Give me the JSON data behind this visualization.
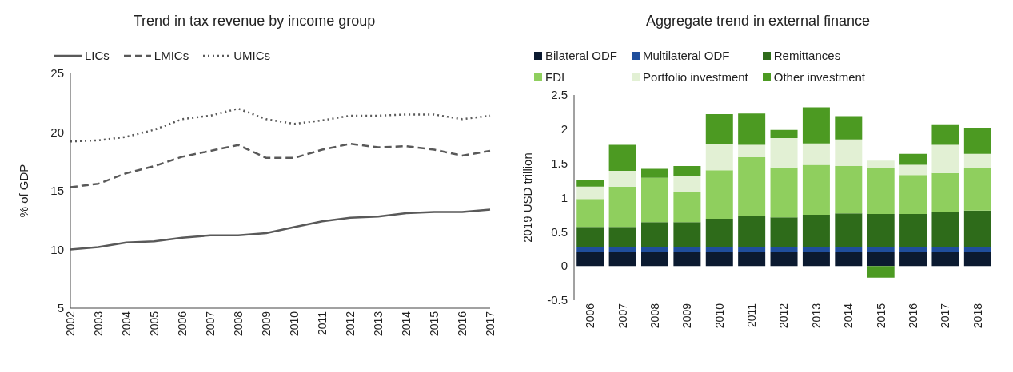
{
  "chart_data": [
    {
      "type": "line",
      "title": "Trend in tax revenue by income group",
      "ylabel": "% of GDP",
      "categories": [
        "2002",
        "2003",
        "2004",
        "2005",
        "2006",
        "2007",
        "2008",
        "2009",
        "2010",
        "2011",
        "2012",
        "2013",
        "2014",
        "2015",
        "2016",
        "2017"
      ],
      "series": [
        {
          "name": "LICs",
          "color": "#595959",
          "line_style": "solid",
          "values": [
            10.0,
            10.2,
            10.6,
            10.7,
            11.0,
            11.2,
            11.2,
            11.4,
            11.9,
            12.4,
            12.7,
            12.8,
            13.1,
            13.2,
            13.2,
            13.4
          ]
        },
        {
          "name": "LMICs",
          "color": "#595959",
          "line_style": "dashed",
          "values": [
            15.3,
            15.6,
            16.5,
            17.1,
            17.9,
            18.4,
            18.9,
            17.8,
            17.8,
            18.5,
            19.0,
            18.7,
            18.8,
            18.5,
            18.0,
            18.4
          ]
        },
        {
          "name": "UMICs",
          "color": "#595959",
          "line_style": "dotted",
          "values": [
            19.2,
            19.3,
            19.6,
            20.2,
            21.1,
            21.4,
            22.0,
            21.1,
            20.7,
            21.0,
            21.4,
            21.4,
            21.5,
            21.5,
            21.1,
            21.4
          ]
        }
      ],
      "ylim": [
        5,
        25
      ],
      "yticks": [
        5,
        10,
        15,
        20,
        25
      ],
      "legend": "top"
    },
    {
      "type": "bar",
      "stacked": true,
      "title": "Aggregate trend in external finance",
      "ylabel": "2019 USD trillion",
      "categories": [
        "2006",
        "2007",
        "2008",
        "2009",
        "2010",
        "2011",
        "2012",
        "2013",
        "2014",
        "2015",
        "2016",
        "2017",
        "2018"
      ],
      "series": [
        {
          "name": "Bilateral ODF",
          "color": "#0b1a30",
          "values": [
            0.2,
            0.2,
            0.2,
            0.2,
            0.2,
            0.2,
            0.2,
            0.2,
            0.2,
            0.2,
            0.2,
            0.2,
            0.2
          ]
        },
        {
          "name": "Multilateral ODF",
          "color": "#1f4e9c",
          "values": [
            0.08,
            0.08,
            0.08,
            0.08,
            0.08,
            0.08,
            0.08,
            0.08,
            0.08,
            0.08,
            0.08,
            0.08,
            0.08
          ]
        },
        {
          "name": "Remittances",
          "color": "#2e6b1a",
          "values": [
            0.29,
            0.29,
            0.36,
            0.36,
            0.41,
            0.45,
            0.43,
            0.47,
            0.49,
            0.48,
            0.48,
            0.51,
            0.53
          ]
        },
        {
          "name": "FDI",
          "color": "#8fcf5e",
          "values": [
            0.41,
            0.59,
            0.65,
            0.44,
            0.71,
            0.86,
            0.73,
            0.73,
            0.69,
            0.67,
            0.57,
            0.57,
            0.62
          ]
        },
        {
          "name": "Portfolio investment",
          "color": "#e2f0d4",
          "values": [
            0.18,
            0.23,
            0,
            0.23,
            0.38,
            0.18,
            0.43,
            0.31,
            0.39,
            0.11,
            0.15,
            0.41,
            0.21
          ]
        },
        {
          "name": "Other investment",
          "color": "#4c9a22",
          "values": [
            0.09,
            0.38,
            0.13,
            0.15,
            0.44,
            0.46,
            0.12,
            0.53,
            0.34,
            -0.17,
            0.16,
            0.3,
            0.38
          ]
        }
      ],
      "ylim": [
        -0.5,
        2.5
      ],
      "yticks": [
        -0.5,
        0,
        0.5,
        1,
        1.5,
        2,
        2.5
      ],
      "legend": "top"
    }
  ]
}
